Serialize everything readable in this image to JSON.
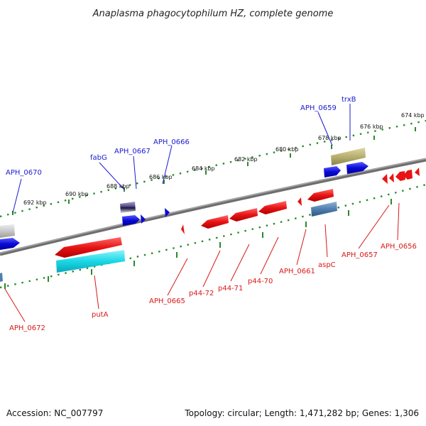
{
  "title": "Anaplasma phagocytophilum HZ, complete genome",
  "footer": {
    "accession": "Accession: NC_007797",
    "summary": "Topology: circular; Length: 1,471,282 bp; Genes: 1,306"
  },
  "colors": {
    "forward_label": "#1a1ad0",
    "reverse_label": "#d81818",
    "backbone": "#808080",
    "tick": "#2a8a2a",
    "forward_gene": "#0a0ad8",
    "reverse_gene": "#e81414",
    "cyan_feature": "#19d7e6",
    "olive_feature": "#b8b070",
    "steel_feature": "#4f7fb0",
    "gray_feature": "#c8c8c8",
    "violet_feature": "#6a5a9a"
  },
  "scale_ticks": [
    "692 kbp",
    "690 kbp",
    "688 kbp",
    "686 kbp",
    "684 kbp",
    "682 kbp",
    "680 kbp",
    "678 kbp",
    "676 kbp",
    "674 kbp"
  ],
  "forward_labels": [
    "APH_0670",
    "fabG",
    "APH_0667",
    "APH_0666",
    "APH_0659",
    "trxB"
  ],
  "reverse_labels": [
    "APH_0672",
    "putA",
    "APH_0665",
    "p44-72",
    "p44-71",
    "p44-70",
    "APH_0661",
    "aspC",
    "APH_0657",
    "APH_0656"
  ]
}
